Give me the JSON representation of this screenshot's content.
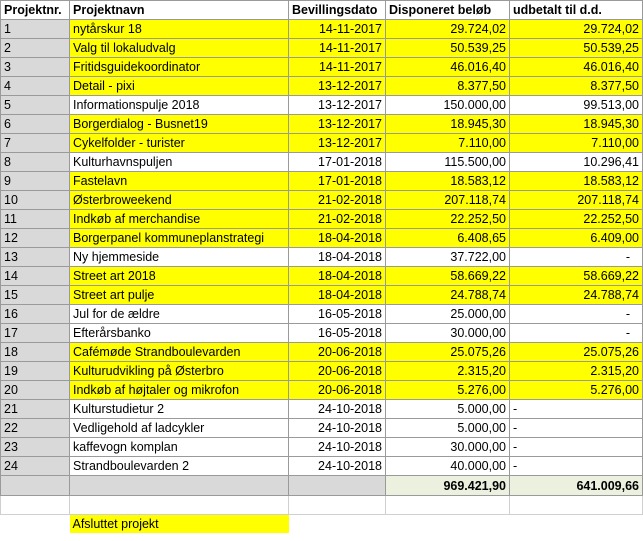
{
  "headers": {
    "nr": "Projektnr.",
    "navn": "Projektnavn",
    "dato": "Bevillingsdato",
    "disp": "Disponeret beløb",
    "udb": "udbetalt til d.d."
  },
  "rows": [
    {
      "nr": "1",
      "navn": "nytårskur 18",
      "dato": "14-11-2017",
      "disp": "29.724,02",
      "udb": "29.724,02",
      "yellow": true
    },
    {
      "nr": "2",
      "navn": "Valg til lokaludvalg",
      "dato": "14-11-2017",
      "disp": "50.539,25",
      "udb": "50.539,25",
      "yellow": true
    },
    {
      "nr": "3",
      "navn": "Fritidsguidekoordinator",
      "dato": "14-11-2017",
      "disp": "46.016,40",
      "udb": "46.016,40",
      "yellow": true
    },
    {
      "nr": "4",
      "navn": "Detail - pixi",
      "dato": "13-12-2017",
      "disp": "8.377,50",
      "udb": "8.377,50",
      "yellow": true
    },
    {
      "nr": "5",
      "navn": "Informationspulje 2018",
      "dato": "13-12-2017",
      "disp": "150.000,00",
      "udb": "99.513,00",
      "yellow": false
    },
    {
      "nr": "6",
      "navn": "Borgerdialog - Busnet19",
      "dato": "13-12-2017",
      "disp": "18.945,30",
      "udb": "18.945,30",
      "yellow": true
    },
    {
      "nr": "7",
      "navn": "Cykelfolder - turister",
      "dato": "13-12-2017",
      "disp": "7.110,00",
      "udb": "7.110,00",
      "yellow": true
    },
    {
      "nr": "8",
      "navn": "Kulturhavnspuljen",
      "dato": "17-01-2018",
      "disp": "115.500,00",
      "udb": "10.296,41",
      "yellow": false
    },
    {
      "nr": "9",
      "navn": "Fastelavn",
      "dato": "17-01-2018",
      "disp": "18.583,12",
      "udb": "18.583,12",
      "yellow": true
    },
    {
      "nr": "10",
      "navn": "Østerbroweekend",
      "dato": "21-02-2018",
      "disp": "207.118,74",
      "udb": "207.118,74",
      "yellow": true
    },
    {
      "nr": "11",
      "navn": "Indkøb af merchandise",
      "dato": "21-02-2018",
      "disp": "22.252,50",
      "udb": "22.252,50",
      "yellow": true
    },
    {
      "nr": "12",
      "navn": "Borgerpanel kommuneplanstrategi",
      "dato": "18-04-2018",
      "disp": "6.408,65",
      "udb": "6.409,00",
      "yellow": true
    },
    {
      "nr": "13",
      "navn": "Ny hjemmeside",
      "dato": "18-04-2018",
      "disp": "37.722,00",
      "udb": "-",
      "yellow": false
    },
    {
      "nr": "14",
      "navn": "Street art 2018",
      "dato": "18-04-2018",
      "disp": "58.669,22",
      "udb": "58.669,22",
      "yellow": true
    },
    {
      "nr": "15",
      "navn": "Street art pulje",
      "dato": "18-04-2018",
      "disp": "24.788,74",
      "udb": "24.788,74",
      "yellow": true
    },
    {
      "nr": "16",
      "navn": "Jul for de ældre",
      "dato": "16-05-2018",
      "disp": "25.000,00",
      "udb": "-",
      "yellow": false
    },
    {
      "nr": "17",
      "navn": "Efterårsbanko",
      "dato": "16-05-2018",
      "disp": "30.000,00",
      "udb": "-",
      "yellow": false
    },
    {
      "nr": "18",
      "navn": "Cafémøde Strandboulevarden",
      "dato": "20-06-2018",
      "disp": "25.075,26",
      "udb": "25.075,26",
      "yellow": true
    },
    {
      "nr": "19",
      "navn": "Kulturudvikling på Østerbro",
      "dato": "20-06-2018",
      "disp": "2.315,20",
      "udb": "2.315,20",
      "yellow": true
    },
    {
      "nr": "20",
      "navn": "Indkøb af højtaler og mikrofon",
      "dato": "20-06-2018",
      "disp": "5.276,00",
      "udb": "5.276,00",
      "yellow": true
    },
    {
      "nr": "21",
      "navn": "Kulturstudietur 2",
      "dato": "24-10-2018",
      "disp": "5.000,00",
      "udb": "-",
      "yellow": false,
      "dashLeft": true
    },
    {
      "nr": "22",
      "navn": "Vedligehold af ladcykler",
      "dato": "24-10-2018",
      "disp": "5.000,00",
      "udb": "-",
      "yellow": false,
      "dashLeft": true
    },
    {
      "nr": "23",
      "navn": "kaffevogn komplan",
      "dato": "24-10-2018",
      "disp": "30.000,00",
      "udb": "-",
      "yellow": false,
      "dashLeft": true
    },
    {
      "nr": "24",
      "navn": "Strandboulevarden 2",
      "dato": "24-10-2018",
      "disp": "40.000,00",
      "udb": "-",
      "yellow": false,
      "dashLeft": true
    }
  ],
  "totals": {
    "disp": "969.421,90",
    "udb": "641.009,66"
  },
  "legend": {
    "label": "Afsluttet projekt",
    "color": "#ffff00"
  }
}
